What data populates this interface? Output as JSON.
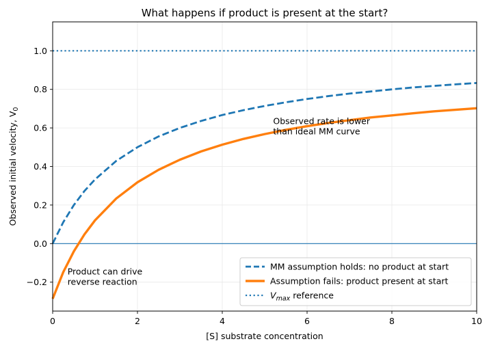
{
  "chart_data": {
    "type": "line",
    "title": "What happens if product is present at the start?",
    "xlabel": "[S] substrate concentration",
    "ylabel": "Observed initial velocity, V",
    "ylabel_subscript": "0",
    "xlim": [
      0,
      10
    ],
    "ylim": [
      -0.35,
      1.15
    ],
    "x_ticks": [
      0,
      2,
      4,
      6,
      8,
      10
    ],
    "x_tick_labels": [
      "0",
      "2",
      "4",
      "6",
      "8",
      "10"
    ],
    "y_ticks": [
      -0.2,
      0.0,
      0.2,
      0.4,
      0.6,
      0.8,
      1.0
    ],
    "y_tick_labels": [
      "−0.2",
      "0.0",
      "0.2",
      "0.4",
      "0.6",
      "0.8",
      "1.0"
    ],
    "grid": true,
    "legend_position": "lower-right",
    "series": [
      {
        "name": "MM assumption holds: no product at start",
        "style": "dashed",
        "color": "#1f77b4",
        "x": [
          0,
          0.25,
          0.5,
          0.75,
          1,
          1.5,
          2,
          2.5,
          3,
          3.5,
          4,
          4.5,
          5,
          5.5,
          6,
          6.5,
          7,
          7.5,
          8,
          8.5,
          9,
          9.5,
          10
        ],
        "y": [
          0,
          0.111,
          0.2,
          0.273,
          0.333,
          0.429,
          0.5,
          0.556,
          0.6,
          0.636,
          0.667,
          0.692,
          0.714,
          0.733,
          0.75,
          0.765,
          0.778,
          0.789,
          0.8,
          0.81,
          0.818,
          0.826,
          0.833
        ]
      },
      {
        "name": "Assumption fails: product present at start",
        "style": "solid",
        "color": "#ff7f0e",
        "x": [
          0,
          0.25,
          0.5,
          0.75,
          1,
          1.5,
          2,
          2.5,
          3,
          3.5,
          4,
          4.5,
          5,
          5.5,
          6,
          6.5,
          7,
          7.5,
          8,
          8.5,
          9,
          9.5,
          10
        ],
        "y": [
          -0.286,
          -0.148,
          -0.04,
          0.048,
          0.121,
          0.234,
          0.318,
          0.383,
          0.435,
          0.478,
          0.513,
          0.543,
          0.568,
          0.59,
          0.609,
          0.626,
          0.64,
          0.654,
          0.665,
          0.676,
          0.686,
          0.694,
          0.702
        ]
      },
      {
        "name_prefix": "V",
        "name_subscript": "max",
        "name_suffix": " reference",
        "style": "dotted",
        "color": "#1f77b4",
        "x": [
          0,
          10
        ],
        "y": [
          1.0,
          1.0
        ]
      }
    ],
    "zero_line": {
      "y": 0.0,
      "color": "#1f77b4"
    },
    "annotations": [
      {
        "lines": [
          "Observed rate is lower",
          "than ideal MM curve"
        ],
        "x": 5.2,
        "y": 0.62
      },
      {
        "lines": [
          "Product can drive",
          "reverse reaction"
        ],
        "x": 0.35,
        "y": -0.16
      }
    ]
  }
}
